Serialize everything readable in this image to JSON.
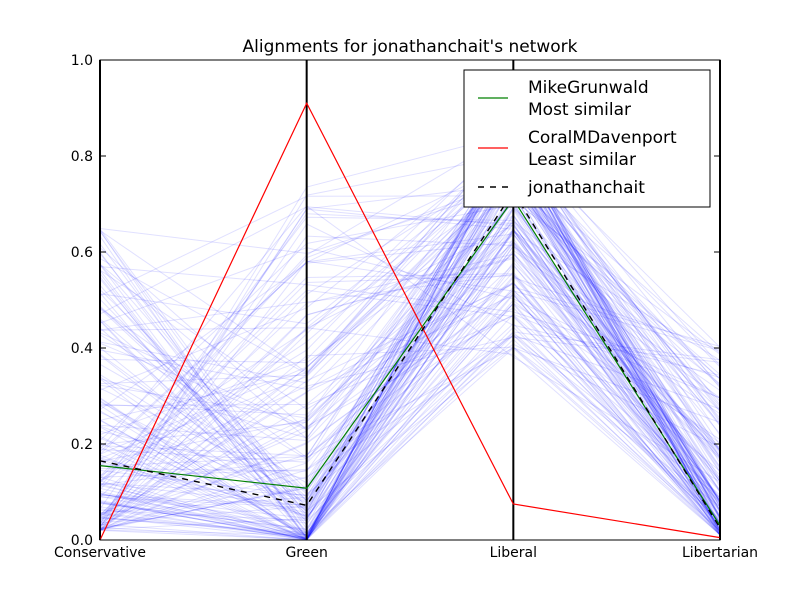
{
  "chart_data": {
    "type": "line",
    "subtype": "parallel-coordinates",
    "title": "Alignments for jonathanchait's network",
    "categories": [
      "Conservative",
      "Green",
      "Liberal",
      "Libertarian"
    ],
    "ylim": [
      0,
      1.0
    ],
    "yticks": [
      "0.0",
      "0.2",
      "0.4",
      "0.6",
      "0.8",
      "1.0"
    ],
    "grid": false,
    "legend_position": "top-right",
    "series": [
      {
        "name": "MikeGrunwald",
        "label_line2": "Most similar",
        "role": "most-similar",
        "color": "#008000",
        "dash": "solid",
        "values": [
          0.155,
          0.108,
          0.71,
          0.03
        ]
      },
      {
        "name": "CoralMDavenport",
        "label_line2": "Least similar",
        "role": "least-similar",
        "color": "#ff0000",
        "dash": "solid",
        "values": [
          0.0,
          0.91,
          0.075,
          0.005
        ]
      },
      {
        "name": "jonathanchait",
        "role": "user",
        "color": "#000000",
        "dash": "dashed",
        "values": [
          0.165,
          0.072,
          0.725,
          0.025
        ]
      }
    ],
    "network": {
      "color": "#0000ff",
      "opacity": 0.12,
      "count": 180,
      "summary": {
        "Conservative": {
          "range": [
            0.0,
            0.65
          ],
          "center": 0.12
        },
        "Green": {
          "range": [
            0.0,
            0.75
          ],
          "center": 0.06
        },
        "Liberal": {
          "range": [
            0.38,
            0.85
          ],
          "center": 0.68
        },
        "Libertarian": {
          "range": [
            0.0,
            0.41
          ],
          "center": 0.08
        }
      }
    }
  }
}
